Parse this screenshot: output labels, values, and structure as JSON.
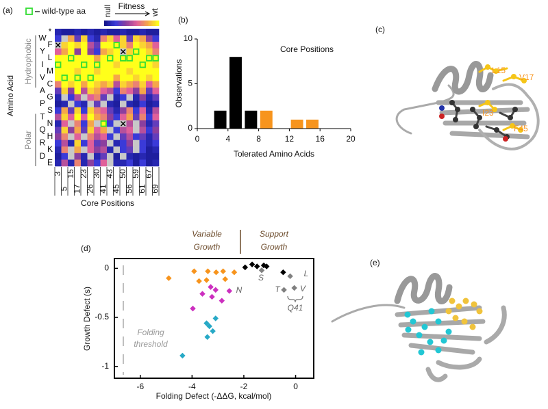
{
  "panel_labels": [
    "(a)",
    "(b)",
    "(c)",
    "(d)",
    "(e)"
  ],
  "chart_data": [
    {
      "type": "heatmap",
      "xlabel": "Core Positions",
      "ylabel": "Amino Acid",
      "x": [
        3,
        5,
        15,
        17,
        23,
        26,
        30,
        41,
        43,
        45,
        50,
        56,
        59,
        61,
        67,
        69
      ],
      "y": [
        "*",
        "W",
        "F",
        "Y",
        "L",
        "I",
        "M",
        "V",
        "C",
        "A",
        "G",
        "P",
        "S",
        "T",
        "N",
        "Q",
        "H",
        "R",
        "K",
        "D",
        "E"
      ],
      "groups": [
        "Hydrophobic",
        "Polar"
      ],
      "values": [
        [
          0.1,
          0.05,
          0.05,
          0.1,
          0.05,
          0.1,
          0.05,
          0.1,
          0.05,
          0.05,
          0.1,
          0.05,
          0.05,
          0.1,
          0.05,
          0.05
        ],
        [
          0.2,
          null,
          0.8,
          0.3,
          0.9,
          0.2,
          0.1,
          0.7,
          0.9,
          0.6,
          0.9,
          0.3,
          0.9,
          0.8,
          0.4,
          0.2
        ],
        [
          null,
          0.9,
          1,
          0.9,
          1,
          0.5,
          0.3,
          1,
          1,
          1,
          0.9,
          0.7,
          1,
          0.9,
          0.8,
          0.6
        ],
        [
          0.6,
          0.8,
          1,
          0.4,
          1,
          0.4,
          0.2,
          0.8,
          0.9,
          1,
          null,
          0.9,
          1,
          1,
          0.9,
          0.7
        ],
        [
          1,
          1,
          1,
          1,
          1,
          1,
          0.8,
          1,
          1,
          1,
          1,
          1,
          1,
          1,
          1,
          1
        ],
        [
          1,
          1,
          1,
          1,
          1,
          1,
          1,
          1,
          1,
          0.9,
          1,
          1,
          1,
          1,
          1,
          0.9
        ],
        [
          1,
          1,
          1,
          0.9,
          1,
          1,
          0.9,
          1,
          1,
          1,
          1,
          0.9,
          1,
          1,
          1,
          1
        ],
        [
          1,
          1,
          1,
          1,
          1,
          1,
          1,
          1,
          1,
          0.8,
          1,
          1,
          0.9,
          1,
          0.9,
          1
        ],
        [
          0.7,
          1,
          0.9,
          1,
          0.8,
          1,
          0.9,
          0.8,
          0.9,
          0.5,
          0.9,
          0.8,
          0.7,
          0.9,
          0.6,
          0.8
        ],
        [
          0.3,
          0.9,
          0.4,
          1,
          0.5,
          0.9,
          0.8,
          0.6,
          0.5,
          0.2,
          0.7,
          0.6,
          0.4,
          0.8,
          0.3,
          0.6
        ],
        [
          0.1,
          null,
          0.2,
          0.5,
          null,
          0.6,
          0.7,
          0.3,
          null,
          0.1,
          0.2,
          null,
          0.1,
          0.4,
          0.1,
          0.3
        ],
        [
          0.05,
          0.1,
          null,
          0.2,
          0.1,
          null,
          0.3,
          null,
          0.1,
          0.05,
          null,
          0.1,
          0.05,
          0.2,
          0.05,
          0.1
        ],
        [
          0.2,
          0.8,
          0.3,
          0.9,
          0.2,
          0.9,
          0.7,
          0.6,
          0.3,
          0.1,
          0.4,
          0.7,
          0.2,
          0.6,
          0.1,
          0.5
        ],
        [
          0.5,
          0.9,
          0.6,
          1,
          0.6,
          1,
          0.8,
          0.7,
          0.4,
          0.2,
          0.6,
          0.8,
          0.3,
          0.7,
          0.2,
          0.6
        ],
        [
          0.1,
          0.6,
          null,
          0.7,
          0.2,
          0.8,
          null,
          1,
          0.2,
          null,
          null,
          0.5,
          null,
          0.4,
          0.1,
          0.3
        ],
        [
          0.3,
          0.9,
          0.4,
          0.8,
          0.3,
          0.9,
          0.6,
          0.8,
          null,
          0.2,
          0.5,
          0.6,
          null,
          0.5,
          0.2,
          0.4
        ],
        [
          0.4,
          0.7,
          null,
          0.6,
          null,
          0.7,
          0.5,
          0.6,
          0.2,
          null,
          0.3,
          0.5,
          0.2,
          0.3,
          0.1,
          0.3
        ],
        [
          0.2,
          0.5,
          0.1,
          0.9,
          0.2,
          0.6,
          0.3,
          0.4,
          null,
          0.1,
          0.2,
          0.4,
          null,
          0.2,
          0.1,
          0.2
        ],
        [
          0.1,
          0.7,
          null,
          0.8,
          null,
          0.6,
          0.4,
          0.5,
          0.1,
          null,
          0.2,
          0.3,
          null,
          0.2,
          0.05,
          0.1
        ],
        [
          0.05,
          0.2,
          null,
          0.4,
          0.1,
          null,
          0.1,
          0.3,
          null,
          0.05,
          null,
          0.1,
          0.05,
          0.1,
          0.05,
          0.05
        ],
        [
          0.1,
          0.5,
          0.1,
          0.7,
          0.1,
          0.4,
          0.2,
          0.6,
          null,
          0.1,
          0.1,
          0.2,
          0.05,
          0.2,
          0.05,
          0.1
        ]
      ],
      "colorscale": [
        "#14148a",
        "#3a3ad8",
        "#8b3f9e",
        "#e0609a",
        "#f5a64a",
        "#ffff1a"
      ],
      "null_color": "#c8c8c8",
      "colorbar": {
        "label": "Fitness",
        "min_label": "null",
        "max_label": "wt"
      },
      "wild_type_label": "wild-type aa",
      "wild_type_color": "#33dd33",
      "wild_type": [
        "I",
        "V",
        "L",
        "V",
        "I",
        "V",
        "I",
        "N",
        "L",
        "F",
        "L",
        "L",
        "Y",
        "I",
        "L",
        "L"
      ],
      "crossed": [
        {
          "x": 3,
          "y": "F"
        },
        {
          "x": 50,
          "y": "Y"
        },
        {
          "x": 50,
          "y": "N"
        }
      ]
    },
    {
      "type": "bar",
      "title": "Core Positions",
      "xlabel": "Tolerated Amino Acids",
      "ylabel": "Observations",
      "x": [
        3,
        5,
        7,
        9,
        13,
        15
      ],
      "values": [
        2,
        8,
        2,
        2,
        1,
        1
      ],
      "colors": [
        "#000000",
        "#000000",
        "#000000",
        "#f7941d",
        "#f7941d",
        "#f7941d"
      ],
      "xlim": [
        0,
        20
      ],
      "xticks": [
        0,
        4,
        8,
        12,
        16,
        20
      ],
      "ylim": [
        0,
        10
      ],
      "yticks": [
        0,
        5,
        10
      ]
    },
    {
      "type": "scatter",
      "xlabel": "Folding Defect (-ΔΔG, kcal/mol)",
      "ylabel": "Growth Defect (s)",
      "xlim": [
        -7,
        0.7
      ],
      "xticks": [
        -6,
        -4,
        -2,
        0
      ],
      "ylim": [
        -1.12,
        0.1
      ],
      "yticks": [
        0,
        -0.5,
        -1
      ],
      "series": [
        {
          "color": "#f7941d",
          "x": [
            -4.9,
            -3.92,
            -3.73,
            -3.39,
            -3.44,
            -3.07,
            -2.8,
            -2.72,
            -2.37
          ],
          "y": [
            -0.1,
            -0.03,
            -0.13,
            -0.03,
            -0.12,
            -0.04,
            -0.03,
            -0.11,
            -0.04
          ]
        },
        {
          "color": "#cc2fbf",
          "x": [
            -3.97,
            -3.6,
            -3.28,
            -3.23,
            -3.09,
            -2.85,
            -2.56
          ],
          "y": [
            -0.41,
            -0.26,
            -0.19,
            -0.29,
            -0.22,
            -0.33,
            -0.23
          ]
        },
        {
          "color": "#27a9c6",
          "x": [
            -4.37,
            -3.41,
            -3.33,
            -3.2,
            -3.09,
            -3.44
          ],
          "y": [
            -0.89,
            -0.7,
            -0.59,
            -0.64,
            -0.51,
            -0.56
          ]
        },
        {
          "color": "#000000",
          "x": [
            -1.95,
            -1.68,
            -1.49,
            -1.23,
            -1.12,
            -0.48
          ],
          "y": [
            0.01,
            0.04,
            0.02,
            0.03,
            0.02,
            -0.04
          ]
        },
        {
          "color": "#808080",
          "x": [
            -1.31,
            -0.21,
            -0.05,
            -0.45
          ],
          "y": [
            -0.02,
            -0.08,
            -0.2,
            -0.22
          ]
        }
      ],
      "annotations": [
        {
          "lines": [
            "Variable",
            "Growth"
          ]
        },
        {
          "lines": [
            "Support",
            "Growth"
          ]
        },
        {
          "lines": [
            "Folding",
            "threshold"
          ]
        }
      ],
      "point_labels": [
        "S",
        "N",
        "L",
        "V",
        "T",
        "Q41"
      ]
    }
  ],
  "structure": {
    "residue_labels": [
      "L15",
      "V17",
      "I23",
      "F45"
    ],
    "label_color": "#f7941d"
  }
}
